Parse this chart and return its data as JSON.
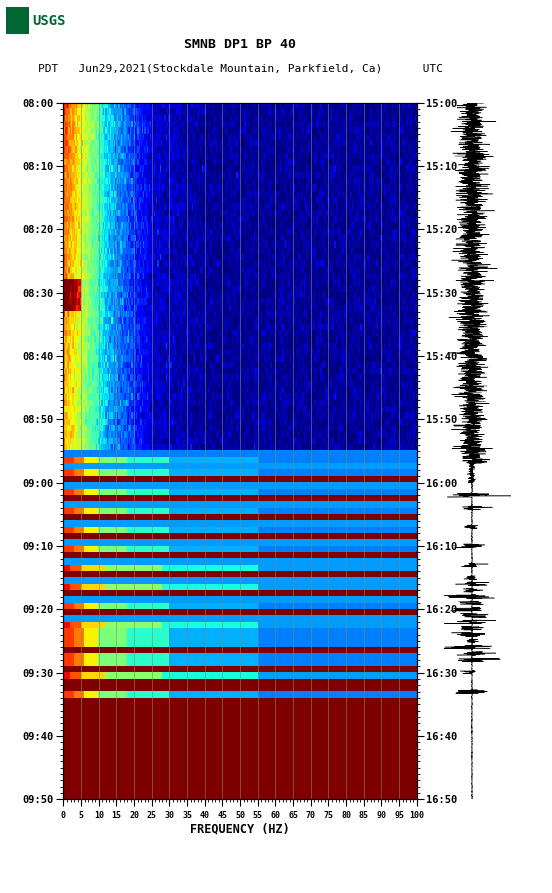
{
  "title_line1": "SMNB DP1 BP 40",
  "title_line2": "PDT   Jun29,2021(Stockdale Mountain, Parkfield, Ca)      UTC",
  "left_time_labels": [
    "08:00",
    "08:10",
    "08:20",
    "08:30",
    "08:40",
    "08:50",
    "09:00",
    "09:10",
    "09:20",
    "09:30",
    "09:40",
    "09:50"
  ],
  "right_time_labels": [
    "15:00",
    "15:10",
    "15:20",
    "15:30",
    "15:40",
    "15:50",
    "16:00",
    "16:10",
    "16:20",
    "16:30",
    "16:40",
    "16:50"
  ],
  "freq_ticks": [
    0,
    5,
    10,
    15,
    20,
    25,
    30,
    35,
    40,
    45,
    50,
    55,
    60,
    65,
    70,
    75,
    80,
    85,
    90,
    95,
    100
  ],
  "xlabel": "FREQUENCY (HZ)",
  "n_time_rows": 110,
  "n_freq_cols": 300,
  "fig_width": 5.52,
  "fig_height": 8.93
}
